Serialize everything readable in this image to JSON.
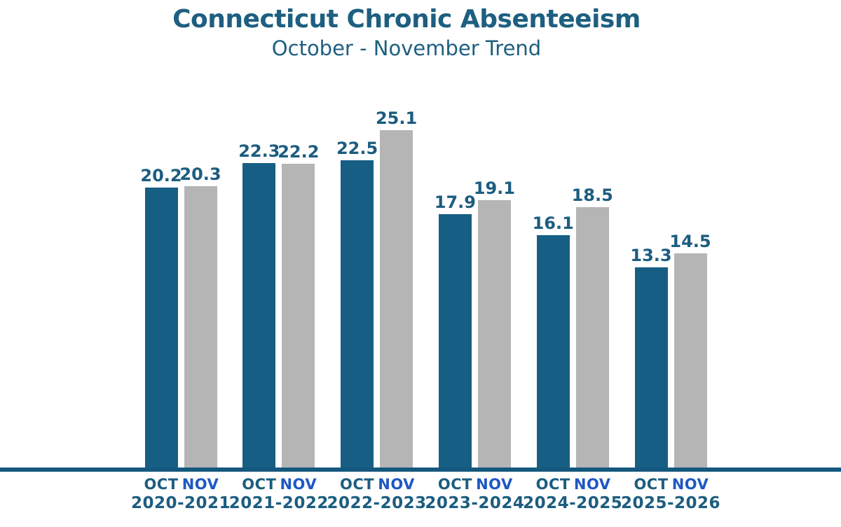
{
  "header": {
    "title": "Connecticut Chronic Absenteeism",
    "subtitle": "October - November Trend"
  },
  "colors": {
    "oct_bar": "#175e85",
    "nov_bar": "#b5b5b5",
    "teal_text": "#1c5d80",
    "nov_label_blue": "#1e58c4",
    "baseline": "#14587e",
    "background": "#ffffff"
  },
  "chart_data": {
    "type": "bar",
    "title": "Connecticut Chronic Absenteeism",
    "subtitle": "October - November Trend",
    "categories": [
      "2020-2021",
      "2021-2022",
      "2022-2023",
      "2023-2024",
      "2024-2025",
      "2025-2026"
    ],
    "series": [
      {
        "name": "OCT",
        "color": "#175e85",
        "values": [
          20.2,
          22.3,
          22.5,
          17.9,
          16.1,
          13.3
        ]
      },
      {
        "name": "NOV",
        "color": "#b5b5b5",
        "values": [
          20.3,
          22.2,
          25.1,
          19.1,
          18.5,
          14.5
        ]
      }
    ],
    "value_label_format": "one decimal place shown above each bar",
    "xlabel": "",
    "ylabel": "",
    "legend_position": "none (series names repeated as x-axis tick labels under each bar pair)",
    "grid": false,
    "y_axis_shown": false,
    "baseline_shown": true
  }
}
